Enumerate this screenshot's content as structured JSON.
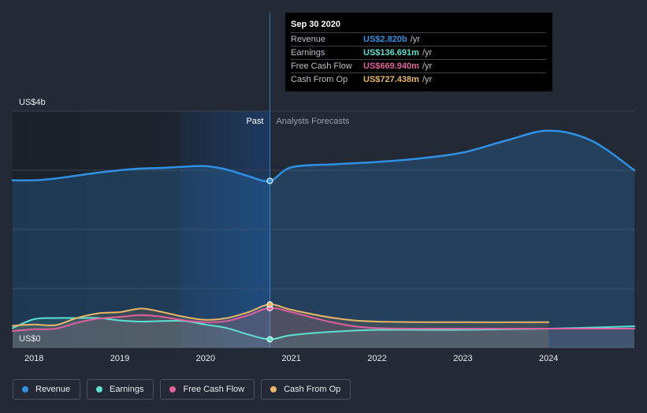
{
  "chart_data": {
    "type": "line",
    "title": "",
    "y_unit_label": "US$",
    "ylim": [
      0,
      4
    ],
    "y_ticks": [
      {
        "value": 4,
        "label": "US$4b"
      },
      {
        "value": 0,
        "label": "US$0"
      }
    ],
    "xlim": [
      2017.75,
      2025.0
    ],
    "x_ticks": [
      {
        "value": 2018,
        "label": "2018"
      },
      {
        "value": 2019,
        "label": "2019"
      },
      {
        "value": 2020,
        "label": "2020"
      },
      {
        "value": 2021,
        "label": "2021"
      },
      {
        "value": 2022,
        "label": "2022"
      },
      {
        "value": 2023,
        "label": "2023"
      },
      {
        "value": 2024,
        "label": "2024"
      }
    ],
    "past_divider_x": 2020.75,
    "past_label": "Past",
    "forecast_label": "Analysts Forecasts",
    "series": [
      {
        "name": "Revenue",
        "key": "revenue",
        "color": "#2f91e3",
        "area": true,
        "points": [
          [
            2017.75,
            2.83
          ],
          [
            2018.0,
            2.83
          ],
          [
            2018.25,
            2.86
          ],
          [
            2018.5,
            2.91
          ],
          [
            2018.75,
            2.96
          ],
          [
            2019.0,
            3.0
          ],
          [
            2019.25,
            3.03
          ],
          [
            2019.5,
            3.04
          ],
          [
            2019.75,
            3.06
          ],
          [
            2020.0,
            3.07
          ],
          [
            2020.25,
            3.01
          ],
          [
            2020.5,
            2.9
          ],
          [
            2020.75,
            2.82
          ],
          [
            2021.0,
            3.05
          ],
          [
            2021.5,
            3.1
          ],
          [
            2022.0,
            3.14
          ],
          [
            2022.5,
            3.2
          ],
          [
            2023.0,
            3.3
          ],
          [
            2023.5,
            3.5
          ],
          [
            2024.0,
            3.67
          ],
          [
            2024.5,
            3.5
          ],
          [
            2025.0,
            3.0
          ]
        ]
      },
      {
        "name": "Earnings",
        "key": "earnings",
        "color": "#5ce0d2",
        "area": true,
        "points": [
          [
            2017.75,
            0.33
          ],
          [
            2018.0,
            0.48
          ],
          [
            2018.25,
            0.5
          ],
          [
            2018.5,
            0.5
          ],
          [
            2018.75,
            0.5
          ],
          [
            2019.0,
            0.46
          ],
          [
            2019.25,
            0.44
          ],
          [
            2019.5,
            0.45
          ],
          [
            2019.75,
            0.45
          ],
          [
            2020.0,
            0.39
          ],
          [
            2020.25,
            0.33
          ],
          [
            2020.5,
            0.22
          ],
          [
            2020.75,
            0.14
          ],
          [
            2021.0,
            0.21
          ],
          [
            2021.5,
            0.27
          ],
          [
            2022.0,
            0.3
          ],
          [
            2023.0,
            0.3
          ],
          [
            2024.0,
            0.32
          ],
          [
            2025.0,
            0.36
          ]
        ]
      },
      {
        "name": "Free Cash Flow",
        "key": "fcf",
        "color": "#e0609e",
        "area": true,
        "points": [
          [
            2017.75,
            0.28
          ],
          [
            2018.0,
            0.31
          ],
          [
            2018.25,
            0.32
          ],
          [
            2018.5,
            0.42
          ],
          [
            2018.75,
            0.49
          ],
          [
            2019.0,
            0.52
          ],
          [
            2019.25,
            0.55
          ],
          [
            2019.5,
            0.52
          ],
          [
            2019.75,
            0.46
          ],
          [
            2020.0,
            0.43
          ],
          [
            2020.25,
            0.45
          ],
          [
            2020.5,
            0.55
          ],
          [
            2020.75,
            0.67
          ],
          [
            2021.0,
            0.6
          ],
          [
            2021.5,
            0.42
          ],
          [
            2022.0,
            0.33
          ],
          [
            2023.0,
            0.32
          ],
          [
            2024.0,
            0.32
          ],
          [
            2025.0,
            0.32
          ]
        ]
      },
      {
        "name": "Cash From Op",
        "key": "cfo",
        "color": "#e8b564",
        "area": true,
        "points": [
          [
            2017.75,
            0.37
          ],
          [
            2018.0,
            0.39
          ],
          [
            2018.25,
            0.38
          ],
          [
            2018.5,
            0.5
          ],
          [
            2018.75,
            0.58
          ],
          [
            2019.0,
            0.6
          ],
          [
            2019.25,
            0.66
          ],
          [
            2019.5,
            0.6
          ],
          [
            2019.75,
            0.52
          ],
          [
            2020.0,
            0.47
          ],
          [
            2020.25,
            0.5
          ],
          [
            2020.5,
            0.6
          ],
          [
            2020.75,
            0.73
          ],
          [
            2021.0,
            0.64
          ],
          [
            2021.5,
            0.5
          ],
          [
            2022.0,
            0.44
          ],
          [
            2023.0,
            0.43
          ],
          [
            2024.0,
            0.43
          ]
        ]
      }
    ],
    "highlight": {
      "x": 2020.75
    }
  },
  "tooltip": {
    "date": "Sep 30 2020",
    "rows": [
      {
        "label": "Revenue",
        "value": "US$2.820b",
        "unit": "/yr",
        "color": "#2f91e3"
      },
      {
        "label": "Earnings",
        "value": "US$136.691m",
        "unit": "/yr",
        "color": "#5ce0d2"
      },
      {
        "label": "Free Cash Flow",
        "value": "US$669.940m",
        "unit": "/yr",
        "color": "#e0609e"
      },
      {
        "label": "Cash From Op",
        "value": "US$727.438m",
        "unit": "/yr",
        "color": "#e8b564"
      }
    ]
  },
  "legend": [
    {
      "label": "Revenue",
      "color": "#2f91e3"
    },
    {
      "label": "Earnings",
      "color": "#5ce0d2"
    },
    {
      "label": "Free Cash Flow",
      "color": "#e0609e"
    },
    {
      "label": "Cash From Op",
      "color": "#e8b564"
    }
  ]
}
